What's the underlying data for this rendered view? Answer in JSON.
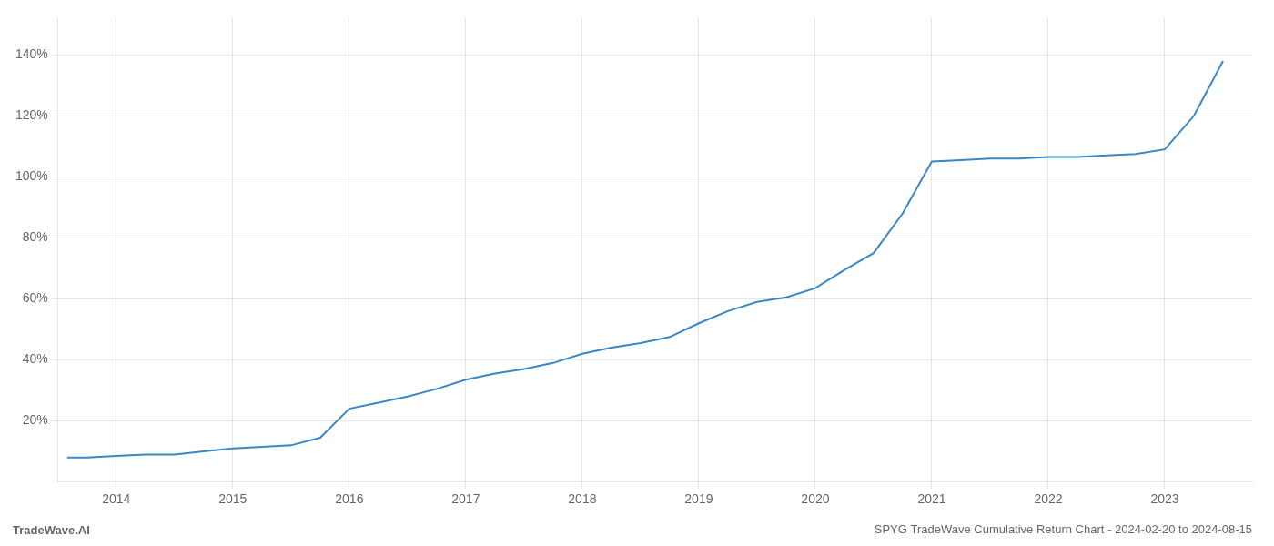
{
  "chart_data": {
    "type": "line",
    "title": "SPYG TradeWave Cumulative Return Chart - 2024-02-20 to 2024-08-15",
    "annotations": [
      "TradeWave.AI"
    ],
    "x": [
      2013.58,
      2013.75,
      2014.0,
      2014.25,
      2014.5,
      2014.75,
      2015.0,
      2015.25,
      2015.5,
      2015.75,
      2016.0,
      2016.25,
      2016.5,
      2016.75,
      2017.0,
      2017.25,
      2017.5,
      2017.75,
      2018.0,
      2018.25,
      2018.5,
      2018.75,
      2019.0,
      2019.25,
      2019.5,
      2019.75,
      2020.0,
      2020.25,
      2020.5,
      2020.75,
      2021.0,
      2021.25,
      2021.5,
      2021.75,
      2022.0,
      2022.25,
      2022.5,
      2022.75,
      2023.0,
      2023.25,
      2023.5
    ],
    "values": [
      0.08,
      0.08,
      0.085,
      0.09,
      0.09,
      0.1,
      0.11,
      0.115,
      0.12,
      0.145,
      0.24,
      0.26,
      0.28,
      0.305,
      0.335,
      0.355,
      0.37,
      0.39,
      0.42,
      0.44,
      0.455,
      0.475,
      0.52,
      0.56,
      0.59,
      0.605,
      0.635,
      0.695,
      0.75,
      0.88,
      1.05,
      1.055,
      1.06,
      1.06,
      1.065,
      1.065,
      1.07,
      1.075,
      1.09,
      1.2,
      1.38
    ],
    "color": "#3a87c8",
    "xlim": [
      2013.5,
      2023.75
    ],
    "xticks": [
      2014,
      2015,
      2016,
      2017,
      2018,
      2019,
      2020,
      2021,
      2022,
      2023
    ],
    "ylim": [
      0.0,
      1.52
    ],
    "yticks": [
      {
        "value": 0.2,
        "label": "20%"
      },
      {
        "value": 0.4,
        "label": "40%"
      },
      {
        "value": 0.6,
        "label": "60%"
      },
      {
        "value": 0.8,
        "label": "80%"
      },
      {
        "value": 1.0,
        "label": "100%"
      },
      {
        "value": 1.2,
        "label": "120%"
      },
      {
        "value": 1.4,
        "label": "140%"
      }
    ],
    "grid": true
  }
}
